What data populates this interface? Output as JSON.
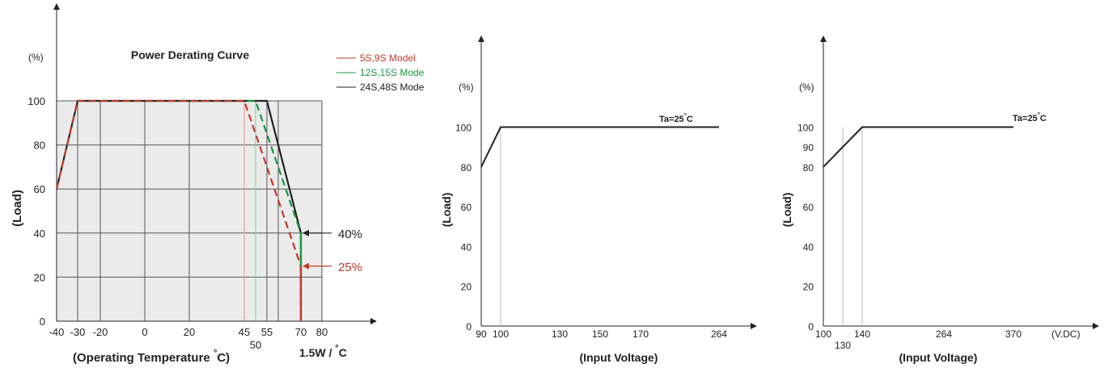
{
  "chart_data": [
    {
      "type": "line",
      "title": "Power Derating Curve",
      "unit_label": "(%)",
      "ylabel": "(Load)",
      "xlabel": "(Operating Temperature °C)",
      "xlabel_main": "(Operating Temperature",
      "xlabel_deg": "°",
      "xlabel_c": "C)",
      "extra_label": "1.5W / °C",
      "extra_main": "1.5W /",
      "extra_deg": "°",
      "extra_c": "C",
      "xlim": [
        -40,
        80
      ],
      "ylim": [
        0,
        100
      ],
      "grid": true,
      "x_ticks": [
        -40,
        -30,
        -20,
        0,
        20,
        45,
        50,
        55,
        70,
        80
      ],
      "x_tick_labels": [
        "-40",
        "-30",
        "-20",
        "0",
        "20",
        "45",
        "50",
        "55",
        "70",
        "80"
      ],
      "y_ticks": [
        0,
        20,
        40,
        60,
        80,
        100
      ],
      "y_tick_labels": [
        "0",
        "20",
        "40",
        "60",
        "80",
        "100"
      ],
      "legend_position": "top-right",
      "series": [
        {
          "name": "5S,9S Model",
          "color": "#c0392b",
          "style": "dashed",
          "x": [
            -40,
            -30,
            45,
            70,
            70
          ],
          "y": [
            60,
            100,
            100,
            25,
            0
          ]
        },
        {
          "name": "12S,15S Mode",
          "color": "#1a9641",
          "style": "dashed",
          "x": [
            -40,
            -30,
            50,
            70,
            70
          ],
          "y": [
            60,
            100,
            100,
            40,
            0
          ]
        },
        {
          "name": "24S,48S Mode",
          "color": "#222222",
          "style": "solid",
          "x": [
            -40,
            -30,
            55,
            70,
            70
          ],
          "y": [
            60,
            100,
            100,
            40,
            0
          ]
        }
      ],
      "annotations": [
        {
          "text": "40%",
          "x": 70,
          "y": 40,
          "color": "#222222"
        },
        {
          "text": "25%",
          "x": 70,
          "y": 25,
          "color": "#c0392b"
        }
      ]
    },
    {
      "type": "line",
      "title": "",
      "unit_label": "(%)",
      "ylabel": "(Load)",
      "xlabel": "(Input Voltage)",
      "xlim": [
        90,
        270
      ],
      "ylim": [
        0,
        110
      ],
      "grid": false,
      "x_tick_labels": [
        "90",
        "100",
        "130",
        "150",
        "170",
        "264"
      ],
      "x_ticks": [
        90,
        100,
        130,
        150,
        170,
        264
      ],
      "y_tick_labels": [
        "0",
        "20",
        "40",
        "60",
        "80",
        "100"
      ],
      "y_ticks": [
        0,
        20,
        40,
        60,
        80,
        100
      ],
      "series": [
        {
          "x": [
            90,
            100,
            264
          ],
          "y": [
            80,
            100,
            100
          ],
          "color": "#222222"
        }
      ],
      "annotation": {
        "text": "Ta=25°C",
        "main": "Ta=25",
        "deg": "°",
        "c": "C"
      }
    },
    {
      "type": "line",
      "title": "",
      "unit_label": "(%)",
      "ylabel": "(Load)",
      "xlabel": "(Input Voltage)",
      "x_unit": "(V.DC)",
      "ylim": [
        0,
        110
      ],
      "grid": false,
      "x_tick_labels": [
        "100",
        "130",
        "140",
        "264",
        "370"
      ],
      "x_ticks": [
        100,
        130,
        140,
        264,
        370
      ],
      "y_tick_labels": [
        "0",
        "20",
        "40",
        "60",
        "80",
        "90",
        "100"
      ],
      "y_ticks": [
        0,
        20,
        40,
        60,
        80,
        90,
        100
      ],
      "series": [
        {
          "x": [
            100,
            140,
            370
          ],
          "y": [
            80,
            100,
            100
          ],
          "color": "#222222"
        }
      ],
      "annotation": {
        "text": "Ta=25°C",
        "main": "Ta=25",
        "deg": "°",
        "c": "C"
      }
    }
  ]
}
